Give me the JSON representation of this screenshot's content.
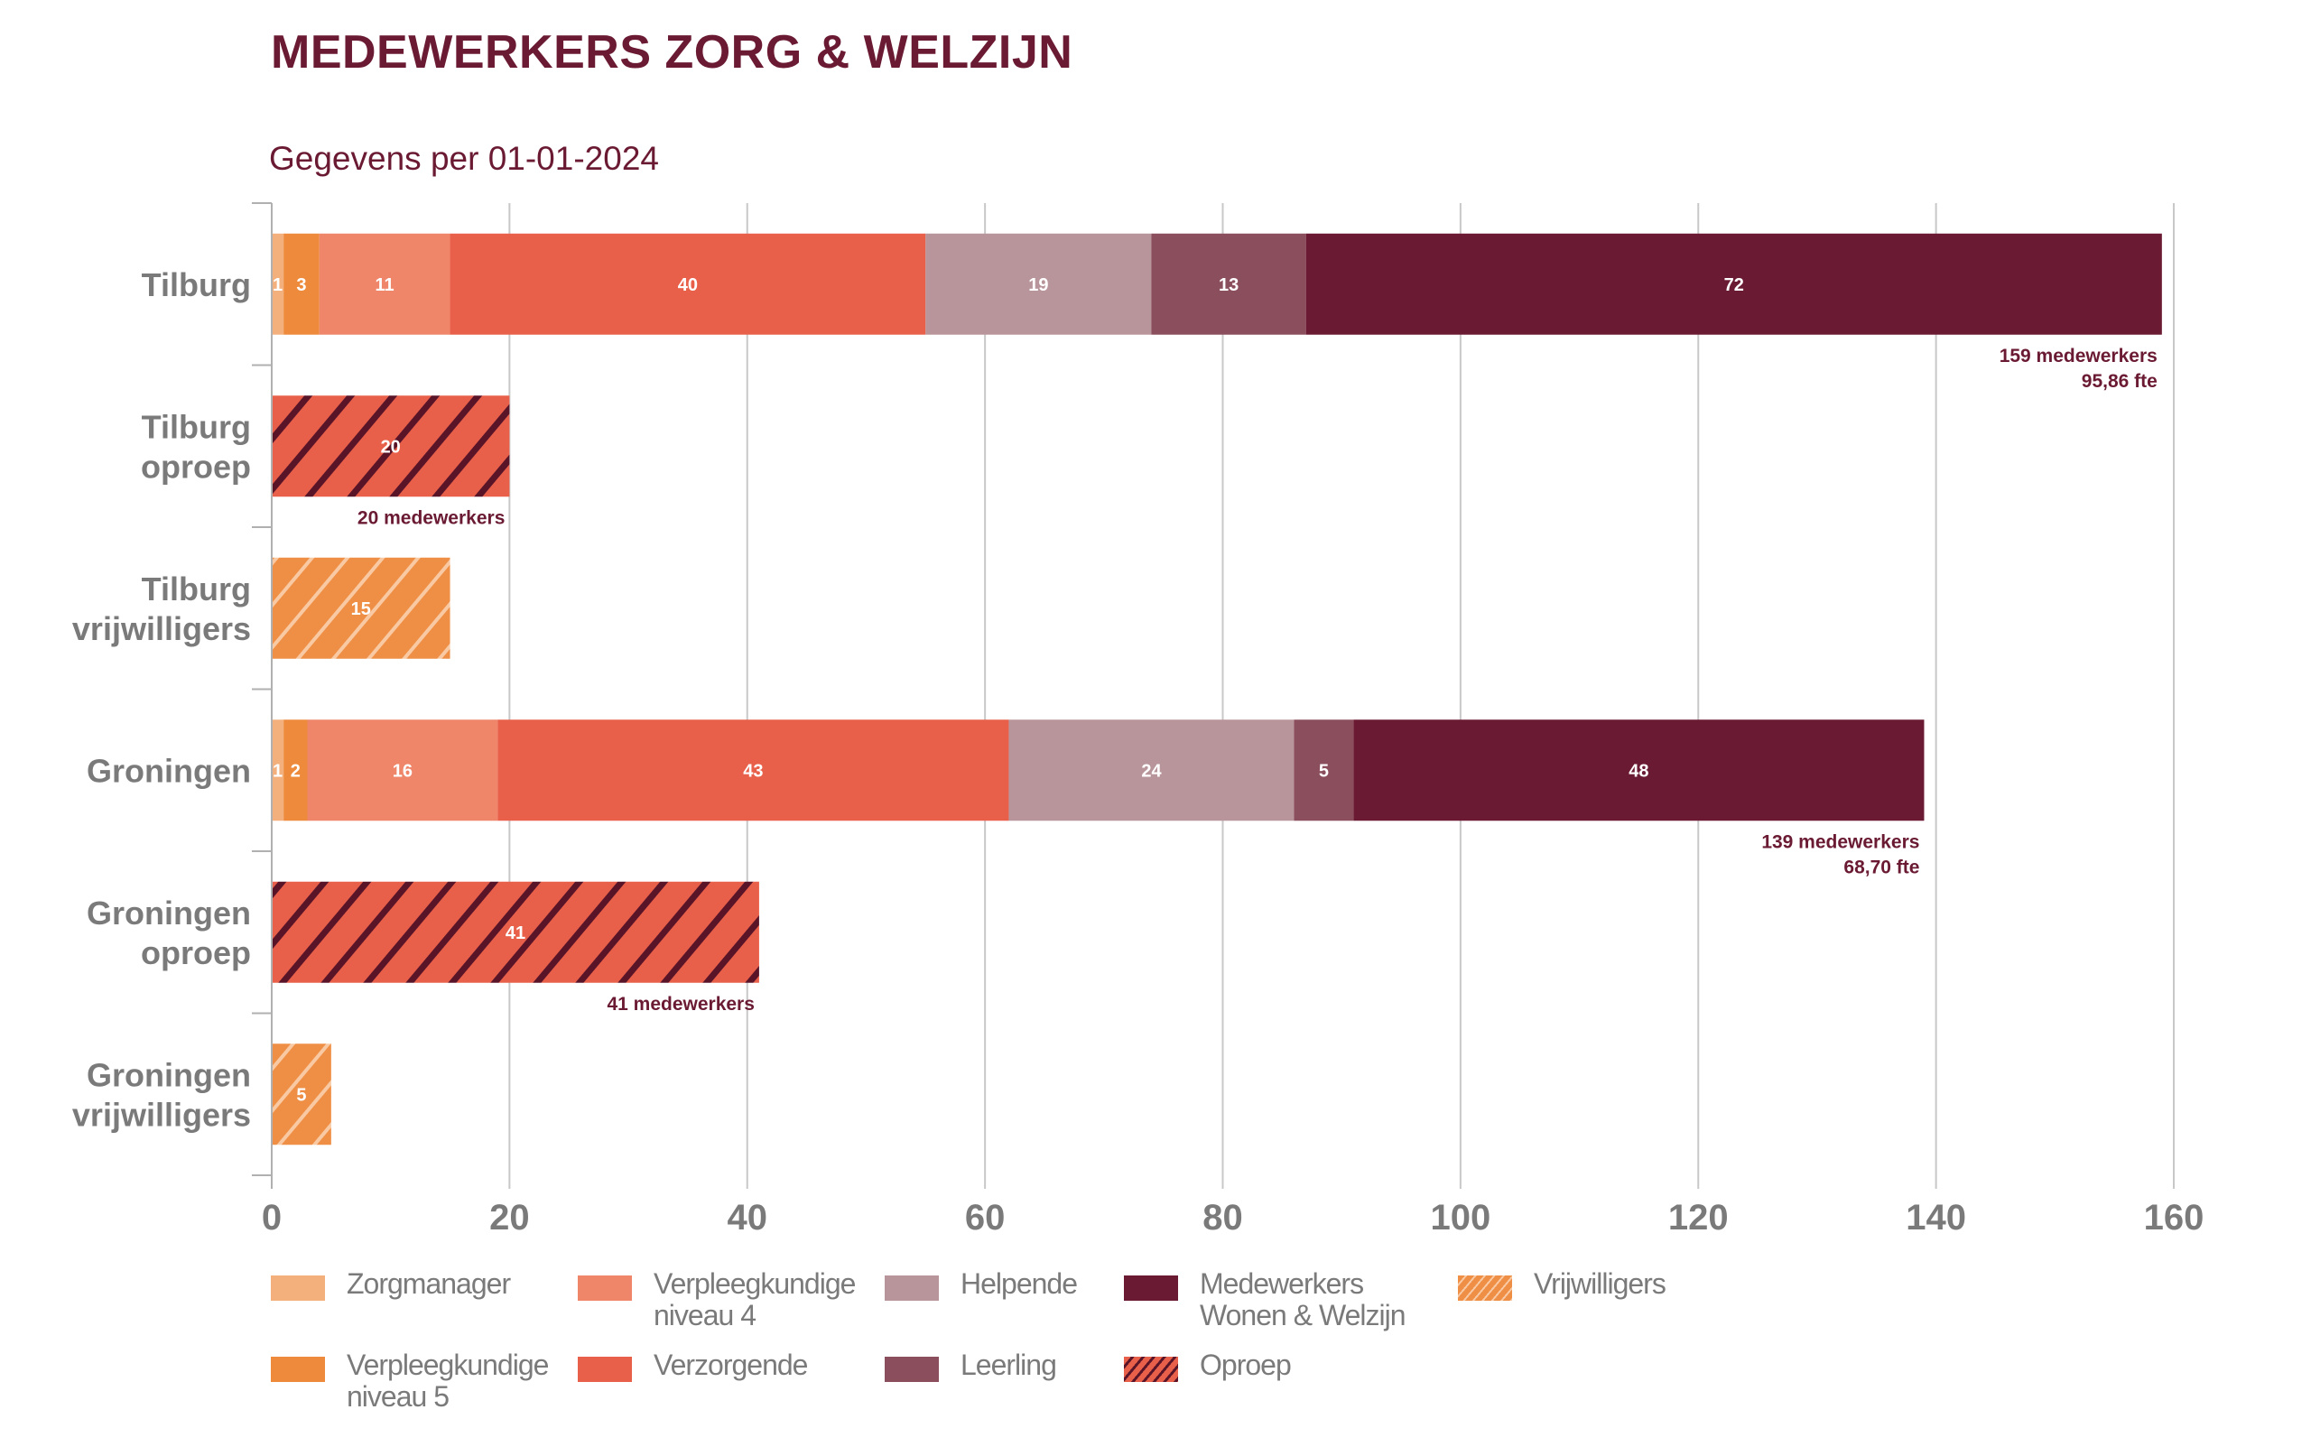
{
  "header": {
    "title": "MEDEWERKERS ZORG & WELZIJN",
    "subtitle": "Gegevens per 01-01-2024"
  },
  "colors": {
    "zorgmanager": "#f3b07d",
    "vpk5": "#ee8a3b",
    "vpk4": "#ef866a",
    "verzorgende": "#e9604a",
    "helpende": "#b8959a",
    "leerling": "#8b4e5d",
    "wonen_welzijn": "#6a1a32",
    "vrijwilligers": "#ef8f45",
    "oproep": "#e9604a",
    "oproep_hatch": "#5a1428",
    "vrijwilligers_hatch": "#f8c9a3",
    "axis_text": "#7a7a7a",
    "grid": "#c8c8c8",
    "title": "#6a1a32"
  },
  "legend": [
    {
      "key": "zorgmanager",
      "label": "Zorgmanager"
    },
    {
      "key": "vpk5",
      "label": "Verpleegkundige\nniveau 5"
    },
    {
      "key": "vpk4",
      "label": "Verpleegkundige\nniveau 4"
    },
    {
      "key": "verzorgende",
      "label": "Verzorgende"
    },
    {
      "key": "helpende",
      "label": "Helpende"
    },
    {
      "key": "leerling",
      "label": "Leerling"
    },
    {
      "key": "wonen_welzijn",
      "label": "Medewerkers\nWonen & Welzijn"
    },
    {
      "key": "oproep",
      "label": "Oproep"
    },
    {
      "key": "vrijwilligers",
      "label": "Vrijwilligers"
    }
  ],
  "chart_data": {
    "type": "bar",
    "orientation": "horizontal",
    "stacked": true,
    "title": "MEDEWERKERS ZORG & WELZIJN",
    "subtitle": "Gegevens per 01-01-2024",
    "xlim": [
      0,
      160
    ],
    "xticks": [
      0,
      20,
      40,
      60,
      80,
      100,
      120,
      140,
      160
    ],
    "grid": true,
    "legend_position": "bottom",
    "categories": [
      "Tilburg",
      "Tilburg\noproep",
      "Tilburg\nvrijwilligers",
      "Groningen",
      "Groningen\noproep",
      "Groningen\nvrijwilligers"
    ],
    "bars": [
      {
        "category": "Tilburg",
        "segments": [
          {
            "series": "zorgmanager",
            "value": 1
          },
          {
            "series": "vpk5",
            "value": 3
          },
          {
            "series": "vpk4",
            "value": 11
          },
          {
            "series": "verzorgende",
            "value": 40
          },
          {
            "series": "helpende",
            "value": 19
          },
          {
            "series": "leerling",
            "value": 13
          },
          {
            "series": "wonen_welzijn",
            "value": 72
          }
        ],
        "note": [
          "159 medewerkers",
          "95,86 fte"
        ]
      },
      {
        "category": "Tilburg oproep",
        "segments": [
          {
            "series": "oproep",
            "value": 20
          }
        ],
        "note": [
          "20 medewerkers"
        ]
      },
      {
        "category": "Tilburg vrijwilligers",
        "segments": [
          {
            "series": "vrijwilligers",
            "value": 15
          }
        ],
        "note": []
      },
      {
        "category": "Groningen",
        "segments": [
          {
            "series": "zorgmanager",
            "value": 1
          },
          {
            "series": "vpk5",
            "value": 2
          },
          {
            "series": "vpk4",
            "value": 16
          },
          {
            "series": "verzorgende",
            "value": 43
          },
          {
            "series": "helpende",
            "value": 24
          },
          {
            "series": "leerling",
            "value": 5
          },
          {
            "series": "wonen_welzijn",
            "value": 48
          }
        ],
        "note": [
          "139 medewerkers",
          "68,70 fte"
        ]
      },
      {
        "category": "Groningen oproep",
        "segments": [
          {
            "series": "oproep",
            "value": 41
          }
        ],
        "note": [
          "41 medewerkers"
        ]
      },
      {
        "category": "Groningen vrijwilligers",
        "segments": [
          {
            "series": "vrijwilligers",
            "value": 5
          }
        ],
        "note": []
      }
    ]
  }
}
